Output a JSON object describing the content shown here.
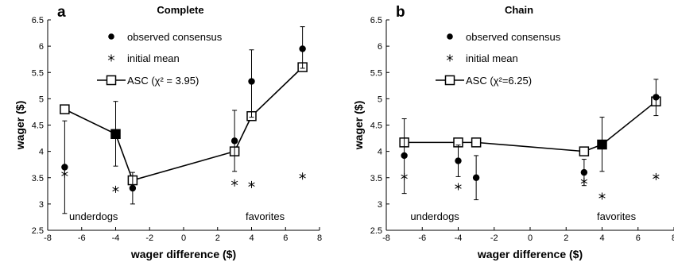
{
  "chart_data": [
    {
      "type": "scatter",
      "panel_letter": "a",
      "title": "Complete",
      "xlabel": "wager difference ($)",
      "ylabel": "wager ($)",
      "xlim": [
        -8,
        8
      ],
      "ylim": [
        2.5,
        6.5
      ],
      "xticks": [
        "-8",
        "-6",
        "-4",
        "-2",
        "0",
        "2",
        "4",
        "6",
        "8"
      ],
      "yticks": [
        "2.5",
        "3",
        "3.5",
        "4",
        "4.5",
        "5",
        "5.5",
        "6",
        "6.5"
      ],
      "annotations": [
        "underdogs",
        "favorites"
      ],
      "legend": {
        "position": "top-center",
        "observed_label": "observed consensus",
        "initial_label": "initial mean",
        "asc_label": "ASC (χ² = 3.95)"
      },
      "series": [
        {
          "name": "observed consensus",
          "x": [
            -7,
            -4,
            -3,
            3,
            4,
            7
          ],
          "y": [
            3.7,
            4.33,
            3.3,
            4.2,
            5.33,
            5.95
          ],
          "err_low": [
            2.82,
            3.72,
            3.0,
            3.62,
            4.65,
            5.58
          ],
          "err_high": [
            4.58,
            4.95,
            3.6,
            4.78,
            5.93,
            6.37
          ]
        },
        {
          "name": "initial mean",
          "x": [
            -7,
            -4,
            3,
            4,
            7
          ],
          "y": [
            3.57,
            3.28,
            3.4,
            3.37,
            3.53
          ]
        },
        {
          "name": "ASC",
          "x": [
            -7,
            -4,
            -3,
            3,
            4,
            7
          ],
          "y": [
            4.8,
            4.33,
            3.45,
            4.0,
            4.67,
            5.6
          ],
          "filled": [
            false,
            true,
            false,
            false,
            false,
            false
          ]
        }
      ]
    },
    {
      "type": "scatter",
      "panel_letter": "b",
      "title": "Chain",
      "xlabel": "wager difference ($)",
      "ylabel": "wager ($)",
      "xlim": [
        -8,
        8
      ],
      "ylim": [
        2.5,
        6.5
      ],
      "xticks": [
        "-8",
        "-6",
        "-4",
        "-2",
        "0",
        "2",
        "4",
        "6",
        "8"
      ],
      "yticks": [
        "2.5",
        "3",
        "3.5",
        "4",
        "4.5",
        "5",
        "5.5",
        "6",
        "6.5"
      ],
      "annotations": [
        "underdogs",
        "favorites"
      ],
      "legend": {
        "position": "top-center",
        "observed_label": "observed consensus",
        "initial_label": "initial mean",
        "asc_label": "ASC (χ²=6.25)"
      },
      "series": [
        {
          "name": "observed consensus",
          "x": [
            -7,
            -4,
            -3,
            3,
            4,
            7
          ],
          "y": [
            3.92,
            3.82,
            3.5,
            3.6,
            4.15,
            5.03
          ],
          "err_low": [
            3.2,
            3.52,
            3.08,
            3.35,
            3.62,
            4.68
          ],
          "err_high": [
            4.62,
            4.12,
            3.92,
            3.85,
            4.65,
            5.37
          ]
        },
        {
          "name": "initial mean",
          "x": [
            -7,
            -4,
            3,
            4,
            7
          ],
          "y": [
            3.52,
            3.33,
            3.43,
            3.15,
            3.52
          ]
        },
        {
          "name": "ASC",
          "x": [
            -7,
            -4,
            -3,
            3,
            4,
            7
          ],
          "y": [
            4.17,
            4.17,
            4.17,
            4.0,
            4.13,
            4.95
          ],
          "filled": [
            false,
            false,
            false,
            false,
            true,
            false
          ]
        }
      ]
    }
  ]
}
